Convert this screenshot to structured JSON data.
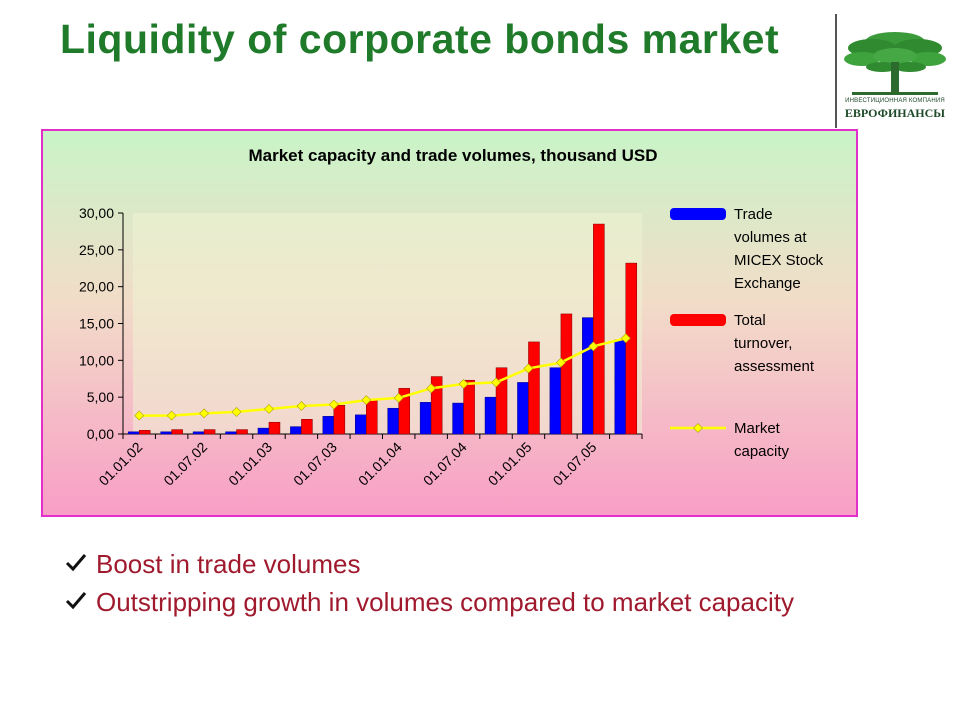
{
  "slide": {
    "title": "Liquidity of corporate bonds market"
  },
  "logo": {
    "subtitle": "ИНВЕСТИЦИОННАЯ КОМПАНИЯ",
    "name": "ЕВРОФИНАНСЫ",
    "icon": "tree-icon"
  },
  "bullets": [
    {
      "text": "Boost in trade volumes",
      "icon": "checkmark-icon"
    },
    {
      "text": "Outstripping growth in volumes compared to market capacity",
      "icon": "checkmark-icon"
    }
  ],
  "colors": {
    "title": "#1f7a2a",
    "bullet_text": "#a01a2e",
    "chart_border": "#e22fc9",
    "micex": "#0000ff",
    "total": "#ff0000",
    "capacity": "#ffff00"
  },
  "chart_data": {
    "type": "bar",
    "title": "Market capacity and trade volumes, thousand USD",
    "xlabel": "",
    "ylabel": "",
    "ylim": [
      0,
      30
    ],
    "yticks": [
      "0,00",
      "5,00",
      "10,00",
      "15,00",
      "20,00",
      "25,00",
      "30,00"
    ],
    "x_tick_labels": [
      "01.01.02",
      "01.07.02",
      "01.01.03",
      "01.07.03",
      "01.01.04",
      "01.07.04",
      "01.01.05",
      "01.07.05"
    ],
    "legend_position": "right",
    "grid": false,
    "series": [
      {
        "name": "Trade volumes at MICEX Stock Exchange",
        "type": "bar",
        "values": [
          0.3,
          0.3,
          0.3,
          0.3,
          0.8,
          1.0,
          2.4,
          2.6,
          3.5,
          4.3,
          4.2,
          5.0,
          7.0,
          9.0,
          15.8,
          12.8
        ]
      },
      {
        "name": "Total turnover, assessment",
        "type": "bar",
        "values": [
          0.5,
          0.6,
          0.6,
          0.6,
          1.6,
          2.0,
          3.9,
          4.6,
          6.2,
          7.8,
          7.3,
          9.0,
          12.5,
          16.3,
          28.5,
          23.2
        ]
      },
      {
        "name": "Market capacity",
        "type": "line",
        "values": [
          2.5,
          2.5,
          2.8,
          3.0,
          3.4,
          3.8,
          4.0,
          4.6,
          4.9,
          6.2,
          6.8,
          7.0,
          8.9,
          9.7,
          11.9,
          13.0
        ]
      }
    ]
  }
}
